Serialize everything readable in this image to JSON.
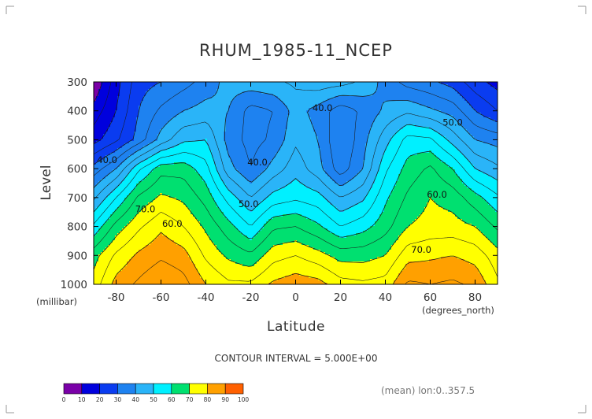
{
  "chart_data": {
    "type": "heatmap",
    "subtype": "filled-contour",
    "title": "RHUM_1985-11_NCEP",
    "xlabel": "Latitude",
    "ylabel": "Level",
    "x_unit": "(degrees_north)",
    "y_unit": "(millibar)",
    "xlim": [
      -90,
      90
    ],
    "ylim": [
      1000,
      300
    ],
    "x_ticks": [
      "-80",
      "-60",
      "-40",
      "-20",
      "0",
      "20",
      "40",
      "60",
      "80"
    ],
    "x_tick_values": [
      -80,
      -60,
      -40,
      -20,
      0,
      20,
      40,
      60,
      80
    ],
    "y_ticks": [
      "300",
      "400",
      "500",
      "600",
      "700",
      "800",
      "900",
      "1000"
    ],
    "y_tick_values": [
      300,
      400,
      500,
      600,
      700,
      800,
      900,
      1000
    ],
    "contour_interval_label": "CONTOUR INTERVAL = 5.000E+00",
    "annotation": "(mean) lon:0..357.5",
    "contour_labels": [
      {
        "text": "40.0",
        "x": 12,
        "y": 390
      },
      {
        "text": "40.0",
        "x": -17,
        "y": 578
      },
      {
        "text": "40.0",
        "x": -84,
        "y": 570
      },
      {
        "text": "50.0",
        "x": 70,
        "y": 440
      },
      {
        "text": "50.0",
        "x": -21,
        "y": 722
      },
      {
        "text": "60.0",
        "x": 63,
        "y": 690
      },
      {
        "text": "60.0",
        "x": -55,
        "y": 790
      },
      {
        "text": "70.0",
        "x": -67,
        "y": 740
      },
      {
        "text": "70.0",
        "x": 56,
        "y": 880
      }
    ],
    "levels": [
      0,
      10,
      20,
      30,
      40,
      50,
      60,
      70,
      80,
      90,
      100
    ],
    "level_labels": [
      "0",
      "10",
      "20",
      "30",
      "40",
      "50",
      "60",
      "70",
      "80",
      "90",
      "100"
    ],
    "colors": [
      "#7a00a8",
      "#0000dd",
      "#0a3cf0",
      "#1e82f0",
      "#2ab4f8",
      "#00f0ff",
      "#00e070",
      "#ffff00",
      "#ffa000",
      "#ff6000",
      "#ff0000"
    ],
    "lat_grid": [
      -90,
      -80,
      -70,
      -60,
      -50,
      -40,
      -30,
      -20,
      -10,
      0,
      10,
      20,
      30,
      40,
      50,
      60,
      70,
      80,
      90
    ],
    "level_grid": [
      300,
      400,
      500,
      600,
      700,
      800,
      900,
      1000
    ],
    "rhum": [
      [
        5,
        18,
        28,
        30,
        33,
        37,
        42,
        43,
        44,
        46,
        48,
        47,
        44,
        38,
        33,
        31,
        28,
        22,
        18
      ],
      [
        12,
        20,
        30,
        36,
        40,
        42,
        40,
        33,
        35,
        42,
        38,
        32,
        36,
        41,
        44,
        41,
        38,
        30,
        25
      ],
      [
        18,
        24,
        32,
        42,
        49,
        50,
        38,
        33,
        36,
        44,
        40,
        30,
        38,
        48,
        57,
        56,
        48,
        40,
        38
      ],
      [
        32,
        40,
        54,
        63,
        63,
        57,
        42,
        35,
        42,
        48,
        42,
        32,
        40,
        54,
        62,
        66,
        60,
        50,
        46
      ],
      [
        44,
        55,
        66,
        71,
        69,
        63,
        53,
        45,
        52,
        54,
        52,
        45,
        49,
        59,
        66,
        70,
        68,
        62,
        56
      ],
      [
        56,
        67,
        74,
        79,
        75,
        69,
        62,
        55,
        64,
        65,
        61,
        55,
        58,
        63,
        70,
        72,
        72,
        70,
        64
      ],
      [
        68,
        76,
        81,
        84,
        82,
        74,
        69,
        66,
        73,
        75,
        72,
        68,
        68,
        70,
        78,
        79,
        80,
        78,
        72
      ],
      [
        72,
        82,
        86,
        90,
        87,
        80,
        76,
        76,
        81,
        83,
        82,
        77,
        76,
        77,
        86,
        85,
        86,
        84,
        76
      ]
    ]
  }
}
